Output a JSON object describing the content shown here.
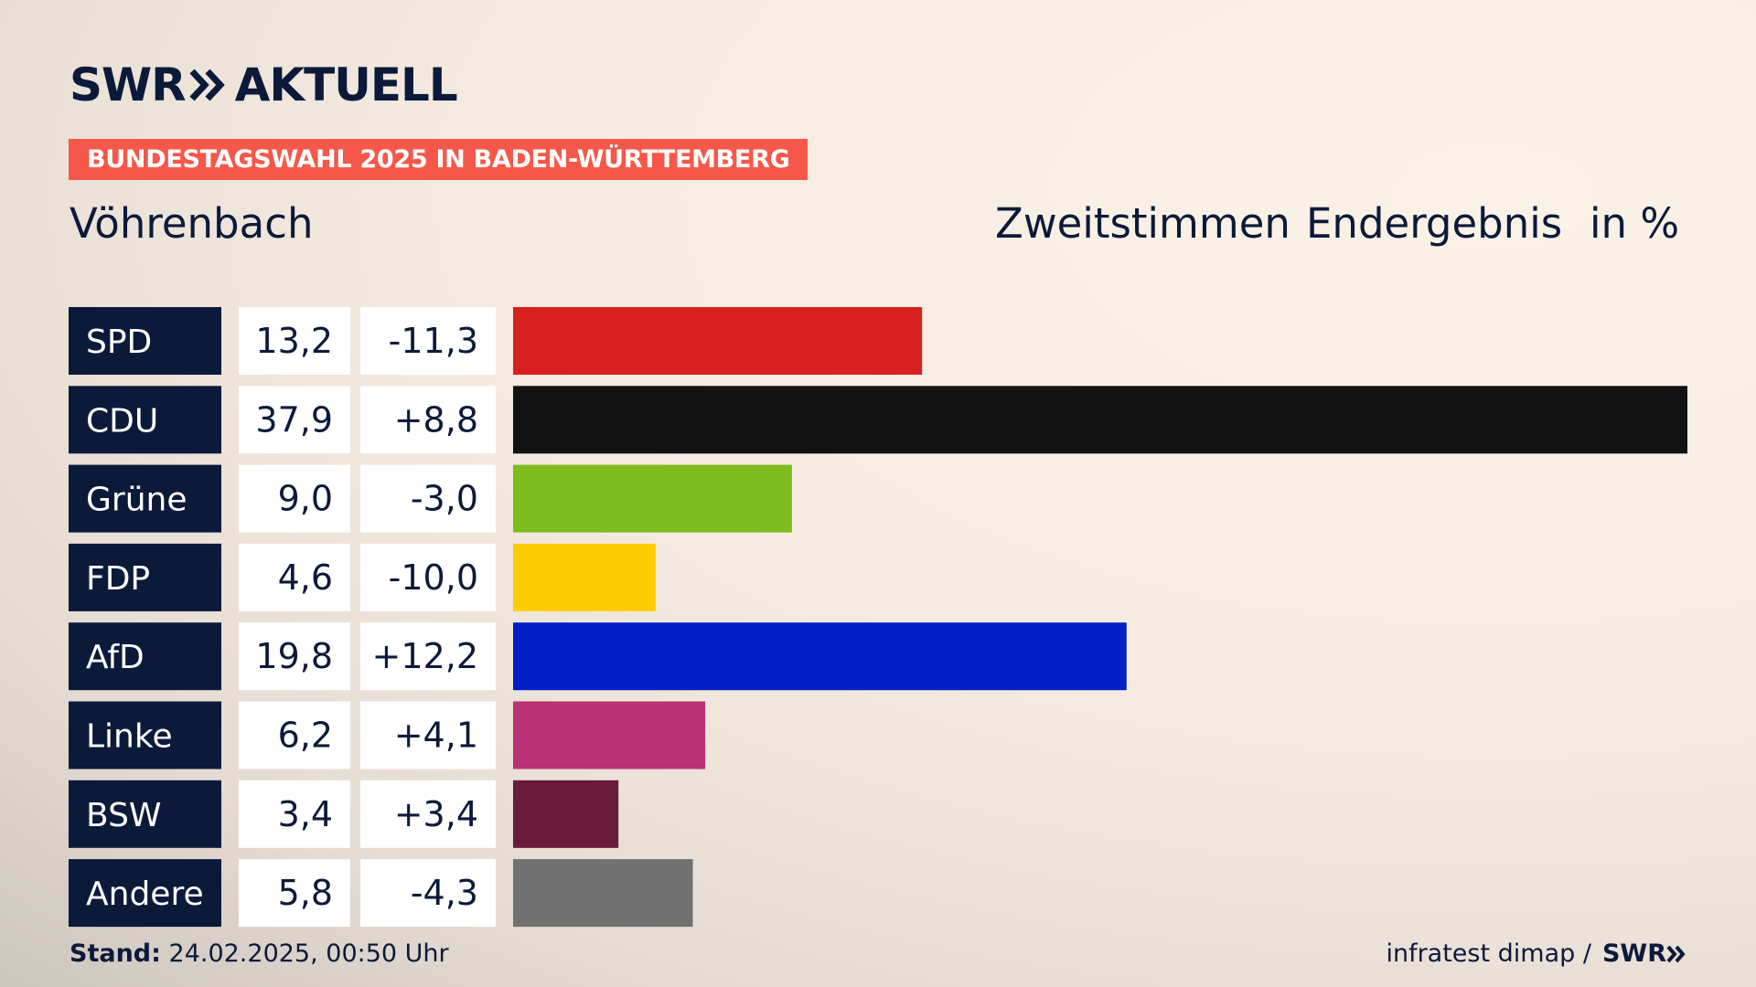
{
  "brand": {
    "logo_left": "SWR",
    "logo_right": "AKTUELL"
  },
  "header": {
    "tag": "BUNDESTAGSWAHL 2025 IN BADEN-WÜRTTEMBERG",
    "place": "Vöhrenbach",
    "vote_type": "Zweitstimmen",
    "status": "Endergebnis",
    "unit": "in %"
  },
  "footer": {
    "stand_label": "Stand:",
    "stand_value": "24.02.2025, 00:50 Uhr",
    "source": "infratest dimap /",
    "source_brand": "SWR"
  },
  "chart_data": {
    "type": "bar",
    "orientation": "horizontal",
    "categories": [
      "SPD",
      "CDU",
      "Grüne",
      "FDP",
      "AfD",
      "Linke",
      "BSW",
      "Andere"
    ],
    "values": [
      13.2,
      37.9,
      9.0,
      4.6,
      19.8,
      6.2,
      3.4,
      5.8
    ],
    "values_label": [
      "13,2",
      "37,9",
      "9,0",
      "4,6",
      "19,8",
      "6,2",
      "3,4",
      "5,8"
    ],
    "change": [
      "-11,3",
      "+8,8",
      "-3,0",
      "-10,0",
      "+12,2",
      "+4,1",
      "+3,4",
      "-4,3"
    ],
    "colors": [
      "#d82020",
      "#121212",
      "#7ebc1e",
      "#ffcc00",
      "#001fc8",
      "#bb3175",
      "#6a1a3b",
      "#717171"
    ],
    "label_bg": "#0c1a3a"
  }
}
